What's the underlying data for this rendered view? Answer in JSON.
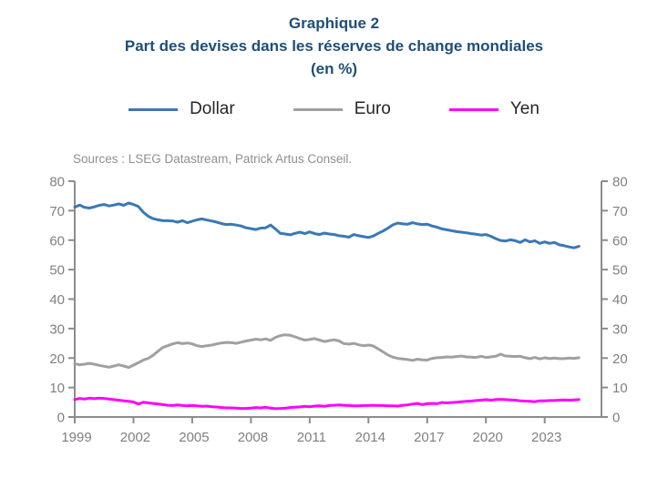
{
  "header": {
    "title_line1": "Graphique 2",
    "title_line2": "Part des devises dans les réserves de change mondiales",
    "title_line3": "(en %)",
    "title_color": "#1F4E79"
  },
  "legend": {
    "position": "top",
    "items": [
      {
        "label": "Dollar",
        "color": "#3A78B5"
      },
      {
        "label": "Euro",
        "color": "#A0A0A0"
      },
      {
        "label": "Yen",
        "color": "#FF00FF"
      }
    ]
  },
  "source_note": "Sources : LSEG Datastream, Patrick Artus Conseil.",
  "chart_data": {
    "type": "line",
    "title": "Part des devises dans les réserves de change mondiales (en %)",
    "xlabel": "",
    "ylabel": "",
    "grid": false,
    "legend_position": "top",
    "axis_color": "#8C8C8C",
    "tick_label_color": "#808080",
    "ylim": [
      0,
      80
    ],
    "xlim": [
      1999,
      2025.9
    ],
    "y_ticks": [
      0,
      10,
      20,
      30,
      40,
      50,
      60,
      70,
      80
    ],
    "x_axis_ticks": [
      1999,
      2002,
      2005,
      2008,
      2011,
      2014,
      2017,
      2020,
      2023
    ],
    "x_start": 1999,
    "x_step": 0.25,
    "series": [
      {
        "name": "Dollar",
        "color": "#3A78B5",
        "values": [
          71.2,
          71.9,
          71.1,
          70.9,
          71.3,
          71.8,
          72.1,
          71.6,
          71.9,
          72.3,
          71.8,
          72.6,
          72.1,
          71.4,
          69.5,
          68.1,
          67.3,
          66.9,
          66.6,
          66.6,
          66.5,
          66.1,
          66.6,
          65.9,
          66.4,
          66.9,
          67.2,
          66.8,
          66.5,
          66.1,
          65.6,
          65.3,
          65.4,
          65.1,
          64.8,
          64.2,
          63.9,
          63.6,
          64.1,
          64.2,
          65.1,
          63.8,
          62.3,
          62.1,
          61.8,
          62.3,
          62.7,
          62.2,
          62.8,
          62.2,
          61.9,
          62.4,
          62.1,
          61.9,
          61.5,
          61.3,
          61.0,
          61.9,
          61.5,
          61.2,
          60.9,
          61.4,
          62.3,
          63.1,
          64.1,
          65.2,
          65.8,
          65.5,
          65.4,
          65.9,
          65.5,
          65.3,
          65.4,
          64.8,
          64.4,
          63.8,
          63.5,
          63.2,
          62.9,
          62.7,
          62.5,
          62.2,
          62.0,
          61.7,
          61.9,
          61.3,
          60.5,
          59.9,
          59.7,
          60.1,
          59.8,
          59.2,
          60.1,
          59.4,
          59.8,
          58.9,
          59.4,
          58.9,
          59.2,
          58.4,
          58.1,
          57.7,
          57.4,
          57.9
        ]
      },
      {
        "name": "Euro",
        "color": "#A0A0A0",
        "values": [
          18.1,
          17.7,
          17.9,
          18.2,
          17.9,
          17.5,
          17.2,
          16.9,
          17.3,
          17.7,
          17.3,
          16.8,
          17.6,
          18.4,
          19.3,
          19.9,
          20.9,
          22.3,
          23.6,
          24.2,
          24.8,
          25.2,
          24.9,
          25.1,
          24.8,
          24.2,
          23.9,
          24.2,
          24.4,
          24.8,
          25.1,
          25.3,
          25.2,
          25.0,
          25.4,
          25.8,
          26.1,
          26.4,
          26.2,
          26.5,
          26.0,
          27.0,
          27.6,
          27.9,
          27.7,
          27.2,
          26.6,
          26.1,
          26.3,
          26.6,
          26.1,
          25.6,
          25.9,
          26.2,
          25.8,
          24.9,
          24.7,
          25.0,
          24.5,
          24.2,
          24.4,
          24.1,
          23.1,
          22.1,
          21.0,
          20.3,
          19.9,
          19.7,
          19.5,
          19.2,
          19.6,
          19.4,
          19.3,
          19.9,
          20.1,
          20.2,
          20.4,
          20.3,
          20.5,
          20.7,
          20.4,
          20.3,
          20.2,
          20.6,
          20.2,
          20.4,
          20.6,
          21.3,
          20.7,
          20.6,
          20.5,
          20.6,
          20.1,
          19.8,
          20.2,
          19.7,
          20.1,
          19.8,
          20.0,
          19.8,
          19.8,
          20.0,
          19.9,
          20.1
        ]
      },
      {
        "name": "Yen",
        "color": "#FF00FF",
        "values": [
          5.9,
          6.3,
          6.1,
          6.4,
          6.2,
          6.4,
          6.3,
          6.1,
          5.9,
          5.7,
          5.5,
          5.3,
          5.1,
          4.4,
          5.0,
          4.8,
          4.6,
          4.4,
          4.2,
          4.0,
          3.9,
          4.1,
          3.9,
          3.8,
          3.9,
          3.8,
          3.6,
          3.7,
          3.5,
          3.4,
          3.2,
          3.1,
          3.1,
          3.0,
          2.9,
          2.9,
          3.0,
          3.2,
          3.1,
          3.3,
          3.0,
          2.8,
          2.9,
          3.0,
          3.2,
          3.3,
          3.4,
          3.6,
          3.5,
          3.7,
          3.8,
          3.6,
          3.9,
          4.0,
          4.1,
          4.0,
          3.9,
          3.8,
          3.8,
          3.9,
          3.9,
          4.0,
          3.9,
          3.9,
          3.8,
          3.8,
          3.7,
          4.0,
          4.1,
          4.4,
          4.6,
          4.2,
          4.5,
          4.6,
          4.5,
          4.9,
          4.8,
          4.9,
          5.0,
          5.2,
          5.3,
          5.4,
          5.6,
          5.7,
          5.9,
          5.7,
          5.9,
          6.0,
          5.9,
          5.8,
          5.7,
          5.5,
          5.4,
          5.3,
          5.2,
          5.5,
          5.5,
          5.6,
          5.6,
          5.7,
          5.8,
          5.7,
          5.8,
          5.9
        ]
      }
    ]
  }
}
